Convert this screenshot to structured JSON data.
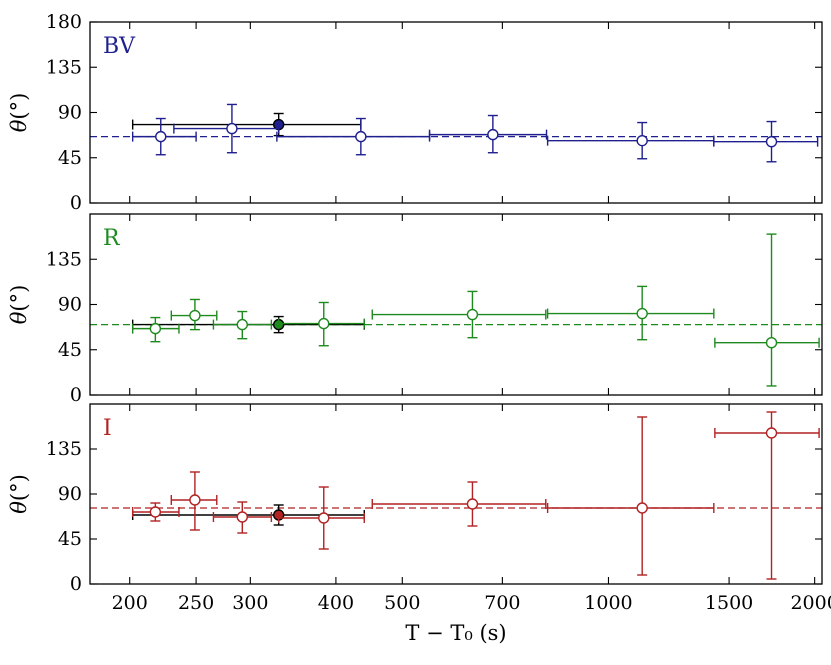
{
  "chart_data": {
    "type": "scatter",
    "xscale": "log",
    "xlim": [
      175,
      2050
    ],
    "xlabel": "T − T₀ (s)",
    "ylabel": "θ(°)",
    "xticks": [
      200,
      250,
      300,
      400,
      500,
      700,
      1000,
      1500,
      2000
    ],
    "xtick_labels": [
      "200",
      "250",
      "300",
      "400",
      "500",
      "700",
      "1000",
      "1500",
      "2000"
    ],
    "panels": [
      {
        "name": "BV",
        "label": "BV",
        "color": "#1f1f8f",
        "ylim": [
          0,
          180
        ],
        "yticks": [
          0,
          45,
          90,
          135,
          180
        ],
        "ytick_labels": [
          "0",
          "45",
          "90",
          "135",
          "180"
        ],
        "mean_line": 66,
        "points": [
          {
            "x": 222,
            "xlo": 202,
            "xhi": 250,
            "y": 66,
            "ylo": 48,
            "yhi": 84
          },
          {
            "x": 282,
            "xlo": 232,
            "xhi": 330,
            "y": 74,
            "ylo": 50,
            "yhi": 98
          },
          {
            "x": 435,
            "xlo": 328,
            "xhi": 548,
            "y": 66,
            "ylo": 48,
            "yhi": 84
          },
          {
            "x": 678,
            "xlo": 548,
            "xhi": 812,
            "y": 68,
            "ylo": 50,
            "yhi": 87
          },
          {
            "x": 1120,
            "xlo": 815,
            "xhi": 1425,
            "y": 62,
            "ylo": 44,
            "yhi": 80
          },
          {
            "x": 1730,
            "xlo": 1425,
            "xhi": 2020,
            "y": 61,
            "ylo": 41,
            "yhi": 81
          }
        ],
        "combined": {
          "x": 330,
          "xlo": 202,
          "xhi": 435,
          "y": 78,
          "ylo": 67,
          "yhi": 89
        }
      },
      {
        "name": "R",
        "label": "R",
        "color": "#1e8a1e",
        "ylim": [
          0,
          180
        ],
        "yticks": [
          0,
          45,
          90,
          135
        ],
        "ytick_labels": [
          "0",
          "45",
          "90",
          "135"
        ],
        "mean_line": 70,
        "points": [
          {
            "x": 218,
            "xlo": 202,
            "xhi": 236,
            "y": 66,
            "ylo": 53,
            "yhi": 77
          },
          {
            "x": 249,
            "xlo": 230,
            "xhi": 268,
            "y": 79,
            "ylo": 65,
            "yhi": 95
          },
          {
            "x": 292,
            "xlo": 265,
            "xhi": 322,
            "y": 70,
            "ylo": 56,
            "yhi": 83
          },
          {
            "x": 384,
            "xlo": 330,
            "xhi": 440,
            "y": 71,
            "ylo": 49,
            "yhi": 92
          },
          {
            "x": 633,
            "xlo": 452,
            "xhi": 810,
            "y": 80,
            "ylo": 57,
            "yhi": 103
          },
          {
            "x": 1120,
            "xlo": 815,
            "xhi": 1425,
            "y": 81,
            "ylo": 55,
            "yhi": 108
          },
          {
            "x": 1730,
            "xlo": 1430,
            "xhi": 2030,
            "y": 52,
            "ylo": 9,
            "yhi": 160
          }
        ],
        "combined": {
          "x": 330,
          "xlo": 202,
          "xhi": 440,
          "y": 70,
          "ylo": 62,
          "yhi": 78
        }
      },
      {
        "name": "I",
        "label": "I",
        "color": "#b22222",
        "ylim": [
          0,
          180
        ],
        "yticks": [
          0,
          45,
          90,
          135
        ],
        "ytick_labels": [
          "0",
          "45",
          "90",
          "135"
        ],
        "mean_line": 76,
        "points": [
          {
            "x": 218,
            "xlo": 202,
            "xhi": 236,
            "y": 72,
            "ylo": 63,
            "yhi": 81
          },
          {
            "x": 249,
            "xlo": 230,
            "xhi": 268,
            "y": 84,
            "ylo": 54,
            "yhi": 112
          },
          {
            "x": 292,
            "xlo": 265,
            "xhi": 322,
            "y": 67,
            "ylo": 51,
            "yhi": 82
          },
          {
            "x": 384,
            "xlo": 330,
            "xhi": 440,
            "y": 66,
            "ylo": 35,
            "yhi": 97
          },
          {
            "x": 633,
            "xlo": 452,
            "xhi": 810,
            "y": 80,
            "ylo": 58,
            "yhi": 102
          },
          {
            "x": 1120,
            "xlo": 815,
            "xhi": 1425,
            "y": 76,
            "ylo": 9,
            "yhi": 167
          },
          {
            "x": 1730,
            "xlo": 1430,
            "xhi": 2030,
            "y": 151,
            "ylo": 5,
            "yhi": 172
          }
        ],
        "combined": {
          "x": 330,
          "xlo": 202,
          "xhi": 440,
          "y": 69,
          "ylo": 59,
          "yhi": 79
        }
      }
    ]
  }
}
